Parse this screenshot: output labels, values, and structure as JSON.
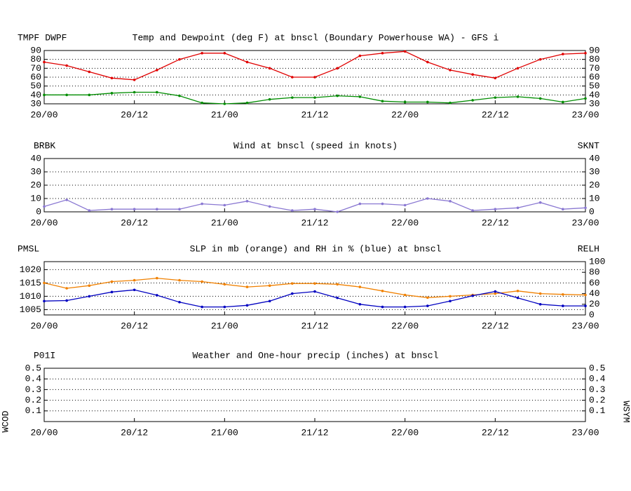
{
  "chart_data": [
    {
      "type": "line",
      "title": "Temp and Dewpoint (deg F) at bnscl (Boundary Powerhouse WA) - GFS i",
      "x": [
        0,
        3,
        6,
        9,
        12,
        15,
        18,
        21,
        24,
        27,
        30,
        33,
        36,
        39,
        42,
        45,
        48,
        51,
        54,
        57,
        60,
        63,
        66,
        69,
        72
      ],
      "xlim": [
        0,
        72
      ],
      "xticks": [
        {
          "value": 0,
          "label": "20/00"
        },
        {
          "value": 12,
          "label": "20/12"
        },
        {
          "value": 24,
          "label": "21/00"
        },
        {
          "value": 36,
          "label": "21/12"
        },
        {
          "value": 48,
          "label": "22/00"
        },
        {
          "value": 60,
          "label": "22/12"
        },
        {
          "value": 72,
          "label": "23/00"
        }
      ],
      "ylim": [
        30,
        90
      ],
      "yticks": [
        30,
        40,
        50,
        60,
        70,
        80,
        90
      ],
      "y2lim": [
        30,
        90
      ],
      "y2ticks": [
        30,
        40,
        50,
        60,
        70,
        80,
        90
      ],
      "grid": true,
      "series": [
        {
          "name": "TMPF",
          "color": "#e00000",
          "values": [
            77,
            73,
            66,
            59,
            57,
            68,
            80,
            87,
            87,
            77,
            70,
            60,
            60,
            70,
            84,
            87,
            89,
            77,
            68,
            63,
            59,
            70,
            80,
            86,
            87
          ]
        },
        {
          "name": "DWPF",
          "color": "#008c00",
          "values": [
            40,
            40,
            40,
            42,
            43,
            43,
            39,
            31,
            30,
            31,
            35,
            37,
            37,
            39,
            38,
            33,
            32,
            32,
            31,
            34,
            37,
            38,
            36,
            32,
            36
          ]
        }
      ]
    },
    {
      "type": "line",
      "title": "Wind at  bnscl (speed in knots)",
      "left_label": "BRBK",
      "left_label_color": "#8a78d2",
      "x": [
        0,
        3,
        6,
        9,
        12,
        15,
        18,
        21,
        24,
        27,
        30,
        33,
        36,
        39,
        42,
        45,
        48,
        51,
        54,
        57,
        60,
        63,
        66,
        69,
        72
      ],
      "xlim": [
        0,
        72
      ],
      "xticks": [
        {
          "value": 0,
          "label": "20/00"
        },
        {
          "value": 12,
          "label": "20/12"
        },
        {
          "value": 24,
          "label": "21/00"
        },
        {
          "value": 36,
          "label": "21/12"
        },
        {
          "value": 48,
          "label": "22/00"
        },
        {
          "value": 60,
          "label": "22/12"
        },
        {
          "value": 72,
          "label": "23/00"
        }
      ],
      "ylim": [
        0,
        40
      ],
      "yticks": [
        0,
        10,
        20,
        30,
        40
      ],
      "y2lim": [
        0,
        40
      ],
      "y2ticks": [
        0,
        10,
        20,
        30,
        40
      ],
      "grid": true,
      "series": [
        {
          "name": "SKNT",
          "color": "#8a78d2",
          "axis": "y2",
          "values": [
            4,
            9,
            1,
            2,
            2,
            2,
            2,
            6,
            5,
            8,
            4,
            1,
            2,
            0,
            6,
            6,
            5,
            10,
            8,
            1,
            2,
            3,
            7,
            2,
            3
          ]
        }
      ]
    },
    {
      "type": "line",
      "title": "SLP in mb (orange) and RH in % (blue) at  bnscl",
      "x": [
        0,
        3,
        6,
        9,
        12,
        15,
        18,
        21,
        24,
        27,
        30,
        33,
        36,
        39,
        42,
        45,
        48,
        51,
        54,
        57,
        60,
        63,
        66,
        69,
        72
      ],
      "xlim": [
        0,
        72
      ],
      "xticks": [
        {
          "value": 0,
          "label": "20/00"
        },
        {
          "value": 12,
          "label": "20/12"
        },
        {
          "value": 24,
          "label": "21/00"
        },
        {
          "value": 36,
          "label": "21/12"
        },
        {
          "value": 48,
          "label": "22/00"
        },
        {
          "value": 60,
          "label": "22/12"
        },
        {
          "value": 72,
          "label": "23/00"
        }
      ],
      "ylim": [
        1003,
        1023
      ],
      "yticks": [
        1005,
        1010,
        1015,
        1020
      ],
      "y2lim": [
        0,
        100
      ],
      "y2ticks": [
        0,
        20,
        40,
        60,
        80,
        100
      ],
      "grid": true,
      "series": [
        {
          "name": "PMSL",
          "color": "#f08000",
          "values": [
            1015,
            1013,
            1014,
            1015.5,
            1016,
            1016.8,
            1016,
            1015.5,
            1014.5,
            1013.5,
            1014,
            1014.8,
            1014.8,
            1014.5,
            1013.5,
            1012,
            1010.5,
            1009.5,
            1010,
            1010.5,
            1011,
            1012,
            1011,
            1010.7,
            1010.5
          ]
        },
        {
          "name": "RELH",
          "color": "#0000c0",
          "axis": "y2",
          "values": [
            26,
            27,
            35,
            43,
            47,
            37,
            24,
            15,
            15,
            18,
            26,
            40,
            44,
            32,
            20,
            15,
            15,
            17,
            26,
            36,
            44,
            32,
            20,
            17,
            17
          ]
        }
      ]
    },
    {
      "type": "line",
      "title": "Weather and One-hour precip (inches) at  bnscl",
      "left_label": "P01I",
      "left_label_color": "#008c00",
      "left_side_label": "WCOD",
      "right_side_label": "WSYM",
      "xlim": [
        0,
        72
      ],
      "xticks": [
        {
          "value": 0,
          "label": "20/00"
        },
        {
          "value": 12,
          "label": "20/12"
        },
        {
          "value": 24,
          "label": "21/00"
        },
        {
          "value": 36,
          "label": "21/12"
        },
        {
          "value": 48,
          "label": "22/00"
        },
        {
          "value": 60,
          "label": "22/12"
        },
        {
          "value": 72,
          "label": "23/00"
        }
      ],
      "ylim": [
        0,
        0.5
      ],
      "yticks": [
        0.1,
        0.2,
        0.3,
        0.4,
        0.5
      ],
      "y2lim": [
        0,
        0.5
      ],
      "y2ticks": [
        0.1,
        0.2,
        0.3,
        0.4,
        0.5
      ],
      "grid": true
    }
  ]
}
